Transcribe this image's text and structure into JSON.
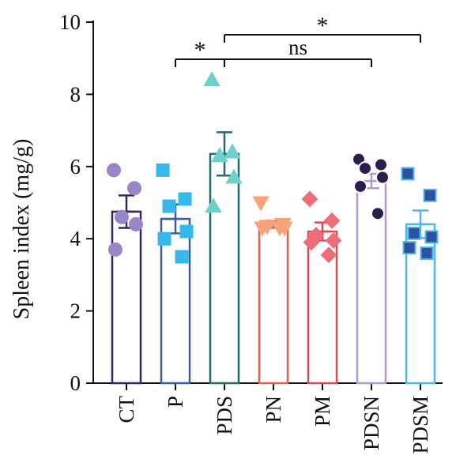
{
  "chart_data": {
    "type": "bar",
    "ylabel": "Spleen index (mg/g)",
    "ylim": [
      0,
      10
    ],
    "yticks": [
      0,
      2,
      4,
      6,
      8,
      10
    ],
    "categories": [
      "CT",
      "P",
      "PDS",
      "PN",
      "PM",
      "PDSN",
      "PDSM"
    ],
    "means": [
      4.75,
      4.55,
      6.35,
      4.4,
      4.2,
      5.6,
      4.4
    ],
    "errors": [
      0.45,
      0.4,
      0.6,
      0.1,
      0.25,
      0.2,
      0.38
    ],
    "points": [
      [
        5.9,
        5.4,
        4.6,
        4.4,
        3.7
      ],
      [
        5.9,
        5.1,
        4.9,
        4.2,
        4.0,
        3.5
      ],
      [
        8.4,
        6.4,
        6.3,
        5.7,
        4.9
      ],
      [
        5.0,
        4.4,
        4.35,
        4.3,
        4.3,
        4.3
      ],
      [
        5.1,
        4.5,
        4.1,
        3.95,
        3.9,
        3.55
      ],
      [
        6.2,
        6.05,
        5.95,
        5.7,
        5.45,
        4.7
      ],
      [
        5.8,
        5.2,
        4.15,
        4.05,
        3.75,
        3.6
      ]
    ],
    "markers": [
      "circle",
      "square",
      "triangle-up",
      "triangle-down",
      "diamond",
      "circle",
      "square"
    ],
    "bar_colors": [
      "#2e2c5e",
      "#3d5aa6",
      "#1f6e6a",
      "#e4604a",
      "#d84c55",
      "#b39bc8",
      "#4fb8e6"
    ],
    "marker_fill": [
      "#9a86c6",
      "#35b8ea",
      "#6fcfcb",
      "#f7a37c",
      "#ee6d79",
      "#2b1e4c",
      "#3050a0"
    ],
    "marker_stroke": [
      "#9a86c6",
      "#35b8ea",
      "#6fcfcb",
      "#f7a37c",
      "#ee6d79",
      "#ffffff",
      "#4fb8e6"
    ],
    "significance": [
      {
        "from": 1,
        "to": 2,
        "label": "*",
        "level": 2
      },
      {
        "from": 2,
        "to": 5,
        "label": "ns",
        "level": 2
      },
      {
        "from": 2,
        "to": 6,
        "label": "*",
        "level": 1
      }
    ]
  }
}
